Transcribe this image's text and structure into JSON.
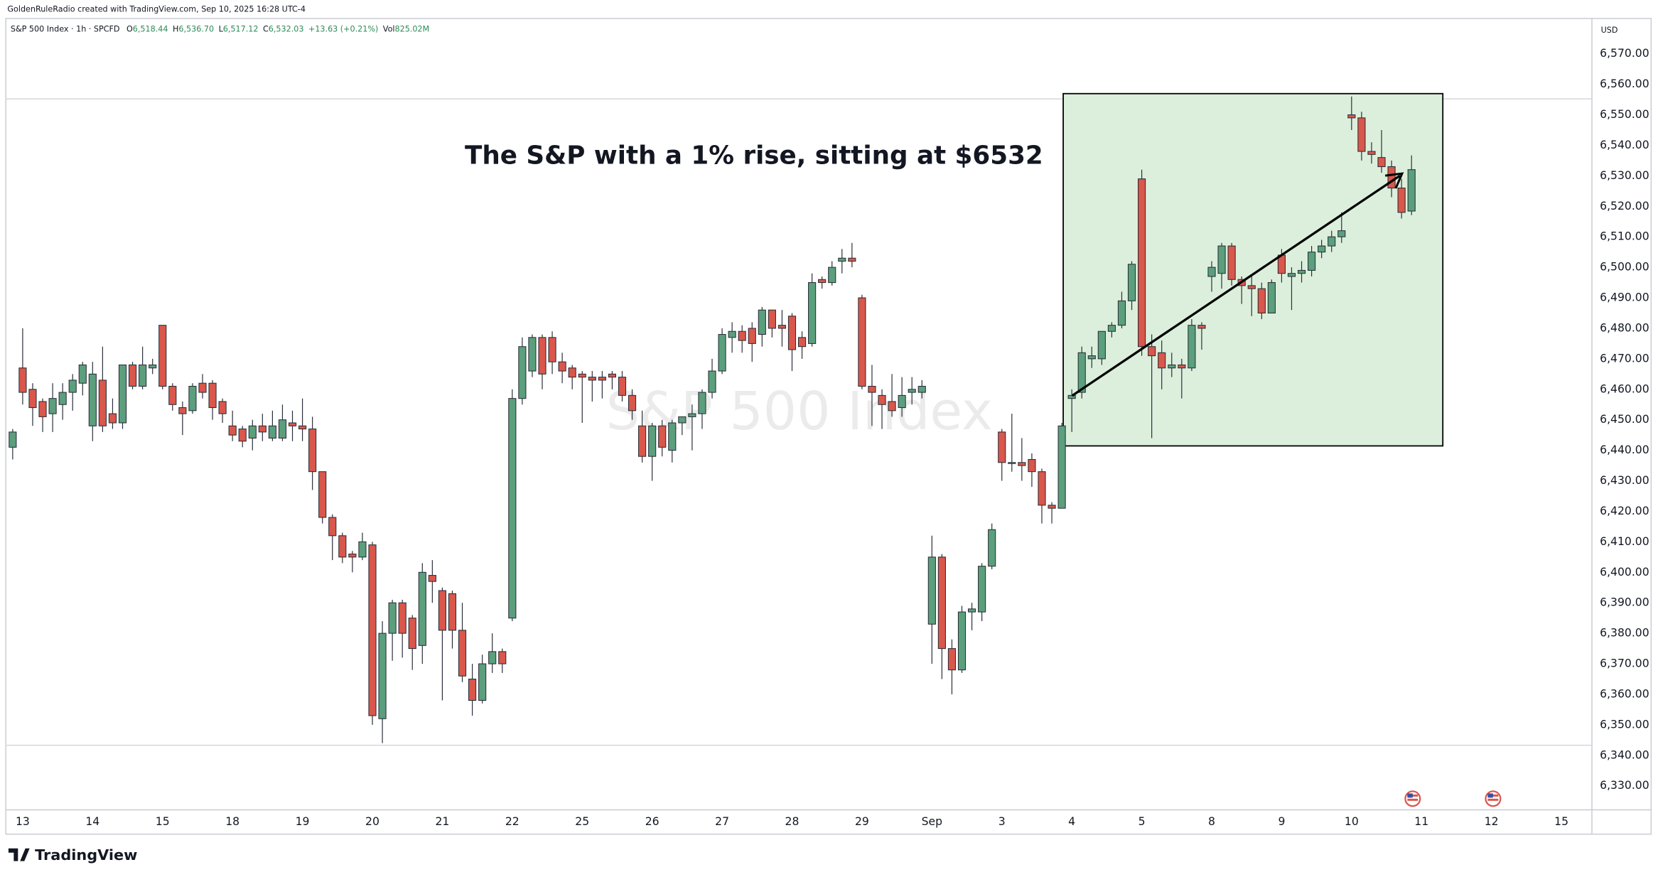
{
  "header": "GoldenRuleRadio created with TradingView.com, Sep 10, 2025 16:28 UTC-4",
  "brand": "TradingView",
  "chart_data": {
    "type": "candlestick",
    "legend": {
      "symbol": "S&P 500 Index · 1h · SPCFD",
      "fields": [
        {
          "key": "O",
          "value": "6,518.44"
        },
        {
          "key": "H",
          "value": "6,536.70"
        },
        {
          "key": "L",
          "value": "6,517.12"
        },
        {
          "key": "C",
          "value": "6,532.03"
        }
      ],
      "change": "+13.63 (+0.21%)",
      "volume_key": "Vol",
      "volume": "825.02M"
    },
    "watermark": "S&P 500 Index",
    "annotation": "The S&P with a 1% rise, sitting at $6532",
    "currency": "USD",
    "up_color": "#5b9f7d",
    "down_color": "#d9574b",
    "grid": false,
    "open": [
      6441,
      6467,
      6460,
      6456,
      6452,
      6455,
      6459,
      6462,
      6448,
      6463,
      6452,
      6449,
      6468,
      6461,
      6467,
      6481,
      6461,
      6454,
      6453,
      6462,
      6462,
      6456,
      6448,
      6447,
      6444,
      6448,
      6444,
      6444,
      6449,
      6448,
      6447,
      6433,
      6418,
      6412,
      6406,
      6405,
      6409,
      6352,
      6380,
      6390,
      6385,
      6376,
      6399,
      6394,
      6393,
      6381,
      6365,
      6358,
      6370,
      6374,
      6385,
      6457,
      6466,
      6477,
      6477,
      6469,
      6467,
      6465,
      6464,
      6464,
      6465,
      6464,
      6458,
      6448,
      6438,
      6448,
      6440,
      6449,
      6451,
      6452,
      6459,
      6466,
      6477,
      6479,
      6480,
      6478,
      6486,
      6481,
      6484,
      6477,
      6475,
      6496,
      6495,
      6502,
      6503,
      6490,
      6461,
      6458,
      6456,
      6454,
      6459,
      6459,
      6383,
      6405,
      6375,
      6368,
      6387,
      6387,
      6402,
      6446,
      6436,
      6436,
      6437,
      6433,
      6422,
      6421,
      6457,
      6459,
      6470,
      6470,
      6479,
      6481,
      6489,
      6529,
      6474,
      6472,
      6467,
      6468,
      6467,
      6481,
      6497,
      6498,
      6507,
      6496,
      6494,
      6493,
      6485,
      6504,
      6497,
      6498,
      6499,
      6505,
      6507,
      6510,
      6550,
      6549,
      6538,
      6536,
      6533,
      6526,
      6518.44
    ],
    "high": [
      6447,
      6480,
      6462,
      6457,
      6462,
      6462,
      6465,
      6469,
      6469,
      6474,
      6457,
      6468,
      6469,
      6474,
      6470,
      6481,
      6462,
      6456,
      6462,
      6465,
      6463,
      6457,
      6453,
      6448,
      6450,
      6452,
      6453,
      6455,
      6453,
      6457,
      6451,
      6433,
      6419,
      6413,
      6407,
      6413,
      6410,
      6384,
      6391,
      6391,
      6386,
      6403,
      6404,
      6395,
      6394,
      6390,
      6370,
      6373,
      6380,
      6375,
      6460,
      6477,
      6478,
      6478,
      6479,
      6472,
      6468,
      6466,
      6466,
      6466,
      6466,
      6466,
      6460,
      6453,
      6449,
      6450,
      6450,
      6451,
      6455,
      6460,
      6470,
      6480,
      6482,
      6481,
      6482,
      6487,
      6486,
      6486,
      6485,
      6479,
      6498,
      6497,
      6502,
      6506,
      6508,
      6491,
      6468,
      6460,
      6465,
      6464,
      6464,
      6463,
      6412,
      6406,
      6378,
      6389,
      6390,
      6403,
      6416,
      6447,
      6452,
      6444,
      6439,
      6434,
      6423,
      6449,
      6460,
      6474,
      6474,
      6479,
      6482,
      6492,
      6502,
      6532,
      6478,
      6476,
      6472,
      6470,
      6483,
      6482,
      6502,
      6508,
      6508,
      6497,
      6497,
      6495,
      6496,
      6506,
      6500,
      6502,
      6507,
      6509,
      6512,
      6518,
      6556,
      6551,
      6541,
      6545,
      6535,
      6529,
      6536.7
    ],
    "low": [
      6437,
      6455,
      6448,
      6446,
      6446,
      6450,
      6453,
      6458,
      6443,
      6446,
      6447,
      6447,
      6460,
      6460,
      6465,
      6460,
      6453,
      6445,
      6452,
      6457,
      6450,
      6449,
      6443,
      6441,
      6440,
      6443,
      6443,
      6443,
      6443,
      6443,
      6427,
      6416,
      6404,
      6403,
      6400,
      6404,
      6350,
      6344,
      6371,
      6372,
      6368,
      6370,
      6390,
      6358,
      6375,
      6364,
      6353,
      6357,
      6367,
      6367,
      6384,
      6455,
      6464,
      6460,
      6465,
      6462,
      6460,
      6449,
      6456,
      6457,
      6460,
      6456,
      6450,
      6436,
      6430,
      6438,
      6436,
      6445,
      6440,
      6447,
      6457,
      6465,
      6472,
      6472,
      6469,
      6474,
      6477,
      6474,
      6466,
      6470,
      6474,
      6493,
      6494,
      6498,
      6500,
      6460,
      6448,
      6447,
      6451,
      6451,
      6455,
      6457,
      6370,
      6365,
      6360,
      6367,
      6381,
      6384,
      6401,
      6430,
      6433,
      6430,
      6428,
      6416,
      6416,
      6421,
      6446,
      6457,
      6467,
      6468,
      6477,
      6480,
      6486,
      6471,
      6444,
      6460,
      6464,
      6457,
      6466,
      6473,
      6492,
      6493,
      6494,
      6488,
      6484,
      6483,
      6485,
      6495,
      6486,
      6495,
      6497,
      6503,
      6505,
      6508,
      6545,
      6535,
      6534,
      6531,
      6523,
      6516,
      6517.12
    ],
    "close": [
      6446,
      6459,
      6454,
      6451,
      6457,
      6459,
      6463,
      6468,
      6465,
      6448,
      6449,
      6468,
      6461,
      6468,
      6468,
      6461,
      6455,
      6452,
      6461,
      6459,
      6454,
      6452,
      6445,
      6443,
      6448,
      6446,
      6448,
      6450,
      6448,
      6447,
      6433,
      6418,
      6412,
      6405,
      6405,
      6410,
      6353,
      6380,
      6390,
      6380,
      6375,
      6400,
      6397,
      6381,
      6381,
      6366,
      6358,
      6370,
      6374,
      6370,
      6457,
      6474,
      6477,
      6465,
      6469,
      6466,
      6464,
      6464,
      6463,
      6463,
      6464,
      6458,
      6453,
      6438,
      6448,
      6441,
      6449,
      6451,
      6452,
      6459,
      6466,
      6478,
      6479,
      6476,
      6475,
      6486,
      6480,
      6480,
      6473,
      6474,
      6495,
      6495,
      6500,
      6503,
      6502,
      6461,
      6459,
      6455,
      6453,
      6458,
      6460,
      6461,
      6405,
      6375,
      6368,
      6387,
      6388,
      6402,
      6414,
      6436,
      6436,
      6435,
      6433,
      6422,
      6421,
      6448,
      6458,
      6472,
      6471,
      6479,
      6481,
      6489,
      6501,
      6474,
      6471,
      6467,
      6468,
      6467,
      6481,
      6480,
      6500,
      6507,
      6496,
      6494,
      6493,
      6485,
      6495,
      6498,
      6498,
      6499,
      6505,
      6507,
      6510,
      6512,
      6549,
      6538,
      6537,
      6533,
      6526,
      6518,
      6532.03
    ],
    "xlim": [
      -0.74,
      158
    ],
    "xticks": [
      {
        "value": 1,
        "label": "13"
      },
      {
        "value": 8,
        "label": "14"
      },
      {
        "value": 15,
        "label": "15"
      },
      {
        "value": 22,
        "label": "18"
      },
      {
        "value": 29,
        "label": "19"
      },
      {
        "value": 36,
        "label": "20"
      },
      {
        "value": 43,
        "label": "21"
      },
      {
        "value": 50,
        "label": "22"
      },
      {
        "value": 57,
        "label": "25"
      },
      {
        "value": 64,
        "label": "26"
      },
      {
        "value": 71,
        "label": "27"
      },
      {
        "value": 78,
        "label": "28"
      },
      {
        "value": 85,
        "label": "29"
      },
      {
        "value": 92,
        "label": "Sep"
      },
      {
        "value": 99,
        "label": "3"
      },
      {
        "value": 106,
        "label": "4"
      },
      {
        "value": 113,
        "label": "5"
      },
      {
        "value": 120,
        "label": "8"
      },
      {
        "value": 127,
        "label": "9"
      },
      {
        "value": 134,
        "label": "10"
      },
      {
        "value": 141,
        "label": "11"
      },
      {
        "value": 148,
        "label": "12"
      },
      {
        "value": 155,
        "label": "15"
      }
    ],
    "ylim": [
      6322.3,
      6581.4
    ],
    "yticks": [
      {
        "value": 6330,
        "label": "6,330.00"
      },
      {
        "value": 6340,
        "label": "6,340.00"
      },
      {
        "value": 6350,
        "label": "6,350.00"
      },
      {
        "value": 6360,
        "label": "6,360.00"
      },
      {
        "value": 6370,
        "label": "6,370.00"
      },
      {
        "value": 6380,
        "label": "6,380.00"
      },
      {
        "value": 6390,
        "label": "6,390.00"
      },
      {
        "value": 6400,
        "label": "6,400.00"
      },
      {
        "value": 6410,
        "label": "6,410.00"
      },
      {
        "value": 6420,
        "label": "6,420.00"
      },
      {
        "value": 6430,
        "label": "6,430.00"
      },
      {
        "value": 6440,
        "label": "6,440.00"
      },
      {
        "value": 6450,
        "label": "6,450.00"
      },
      {
        "value": 6460,
        "label": "6,460.00"
      },
      {
        "value": 6470,
        "label": "6,470.00"
      },
      {
        "value": 6480,
        "label": "6,480.00"
      },
      {
        "value": 6490,
        "label": "6,490.00"
      },
      {
        "value": 6500,
        "label": "6,500.00"
      },
      {
        "value": 6510,
        "label": "6,510.00"
      },
      {
        "value": 6520,
        "label": "6,520.00"
      },
      {
        "value": 6530,
        "label": "6,530.00"
      },
      {
        "value": 6540,
        "label": "6,540.00"
      },
      {
        "value": 6550,
        "label": "6,550.00"
      },
      {
        "value": 6560,
        "label": "6,560.00"
      },
      {
        "value": 6570,
        "label": "6,570.00"
      }
    ]
  }
}
